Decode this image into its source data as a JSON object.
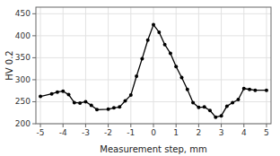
{
  "chart_data": {
    "type": "line",
    "x": [
      -5,
      -4.5,
      -4.25,
      -4,
      -3.75,
      -3.5,
      -3.25,
      -3,
      -2.75,
      -2.5,
      -2,
      -1.75,
      -1.5,
      -1.25,
      -1,
      -0.75,
      -0.5,
      -0.25,
      0,
      0.25,
      0.5,
      0.75,
      1,
      1.25,
      1.5,
      1.75,
      2,
      2.25,
      2.5,
      2.75,
      3,
      3.25,
      3.5,
      3.75,
      4,
      4.25,
      4.5,
      5
    ],
    "values": [
      262,
      268,
      272,
      274,
      266,
      248,
      247,
      250,
      242,
      232,
      233,
      236,
      238,
      252,
      265,
      308,
      348,
      390,
      425,
      408,
      380,
      360,
      330,
      305,
      278,
      248,
      237,
      238,
      230,
      215,
      218,
      240,
      248,
      255,
      280,
      278,
      276,
      276
    ],
    "color": "black",
    "marker": "o",
    "xlim": [
      -5.2,
      5.2
    ],
    "ylim": [
      200,
      465
    ],
    "xticks": [
      -5,
      -4,
      -3,
      -2,
      -1,
      0,
      1,
      2,
      3,
      4,
      5
    ],
    "yticks": [
      200,
      250,
      300,
      350,
      400,
      450
    ],
    "xlabel": "Measurement step, mm",
    "ylabel": "HV 0.2",
    "grid": true
  }
}
